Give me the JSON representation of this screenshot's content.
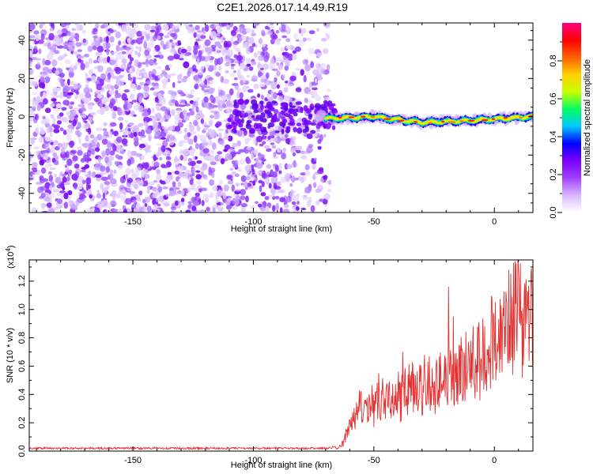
{
  "title": "C2E1.2026.017.14.49.R19",
  "chart_data": [
    {
      "type": "heatmap",
      "title": "C2E1.2026.017.14.49.R19",
      "xlabel": "Height of straight line (km)",
      "ylabel": "Frequency (Hz)",
      "xlim": [
        -193,
        16
      ],
      "ylim": [
        -50,
        49
      ],
      "xticks": [
        -150,
        -100,
        -50,
        0
      ],
      "yticks": [
        40,
        20,
        0,
        -20,
        -40
      ],
      "xtick_labels": [
        "-150",
        "-100",
        "-50",
        "0"
      ],
      "ytick_labels": [
        "40",
        "20",
        "0",
        "-20",
        "-40"
      ],
      "noise_region_km": [
        -193,
        -70
      ],
      "signal_start_km": -70,
      "signal_center_hz": [
        {
          "x": -70,
          "y": -1
        },
        {
          "x": -50,
          "y": 0
        },
        {
          "x": -30,
          "y": -3
        },
        {
          "x": -10,
          "y": -2
        },
        {
          "x": 15,
          "y": 0
        }
      ],
      "colorbar": {
        "label": "Normalized spectral amplitude",
        "range": [
          0,
          1
        ],
        "ticks": [
          "0.0",
          "0.2",
          "0.4",
          "0.6",
          "0.8"
        ],
        "tick_values": [
          0.0,
          0.2,
          0.4,
          0.6,
          0.8
        ],
        "colors": [
          "#ffffff",
          "#d8b8ff",
          "#a040ff",
          "#7a00ff",
          "#0000ff",
          "#00c8ff",
          "#00ff60",
          "#c8ff00",
          "#ffd000",
          "#ff6000",
          "#ff0000",
          "#ff0080"
        ]
      }
    },
    {
      "type": "line",
      "xlabel": "Height of straight line (km)",
      "ylabel": "SNR (10 * v/v)",
      "y_exponent_label": "(x10",
      "y_exponent": "4",
      "xlim": [
        -193,
        16
      ],
      "ylim": [
        0,
        1.35
      ],
      "xticks": [
        -150,
        -100,
        -50,
        0
      ],
      "yticks": [
        0.0,
        0.2,
        0.4,
        0.6,
        0.8,
        1.0,
        1.2
      ],
      "xtick_labels": [
        "-150",
        "-100",
        "-50",
        "0"
      ],
      "ytick_labels": [
        "0.0",
        "0.2",
        "0.4",
        "0.6",
        "0.8",
        "1.0",
        "1.2"
      ],
      "color": "#e53030",
      "series": [
        {
          "name": "SNR",
          "points": [
            [
              -193,
              0.02
            ],
            [
              -150,
              0.02
            ],
            [
              -100,
              0.02
            ],
            [
              -70,
              0.02
            ],
            [
              -66,
              0.03
            ],
            [
              -63,
              0.08
            ],
            [
              -60,
              0.22
            ],
            [
              -57,
              0.28
            ],
            [
              -54,
              0.3
            ],
            [
              -51,
              0.33
            ],
            [
              -48,
              0.35
            ],
            [
              -45,
              0.36
            ],
            [
              -42,
              0.38
            ],
            [
              -39,
              0.4
            ],
            [
              -36,
              0.42
            ],
            [
              -33,
              0.44
            ],
            [
              -30,
              0.42
            ],
            [
              -27,
              0.46
            ],
            [
              -24,
              0.48
            ],
            [
              -21,
              0.5
            ],
            [
              -18,
              0.52
            ],
            [
              -15,
              0.55
            ],
            [
              -12,
              0.57
            ],
            [
              -9,
              0.6
            ],
            [
              -6,
              0.65
            ],
            [
              -3,
              0.72
            ],
            [
              0,
              0.8
            ],
            [
              3,
              0.88
            ],
            [
              6,
              0.95
            ],
            [
              9,
              1.02
            ],
            [
              12,
              0.85
            ],
            [
              15,
              0.9
            ]
          ],
          "peaks": [
            {
              "x": -48,
              "y": 0.55
            },
            {
              "x": -38,
              "y": 0.7
            },
            {
              "x": -29,
              "y": 0.68
            },
            {
              "x": -19,
              "y": 1.16
            },
            {
              "x": -17,
              "y": 0.95
            },
            {
              "x": -9,
              "y": 0.76
            },
            {
              "x": -3,
              "y": 0.72
            },
            {
              "x": 3,
              "y": 0.9
            },
            {
              "x": 6,
              "y": 1.28
            },
            {
              "x": 8,
              "y": 1.33
            },
            {
              "x": 10,
              "y": 1.3
            },
            {
              "x": 15,
              "y": 1.07
            }
          ]
        }
      ]
    }
  ]
}
